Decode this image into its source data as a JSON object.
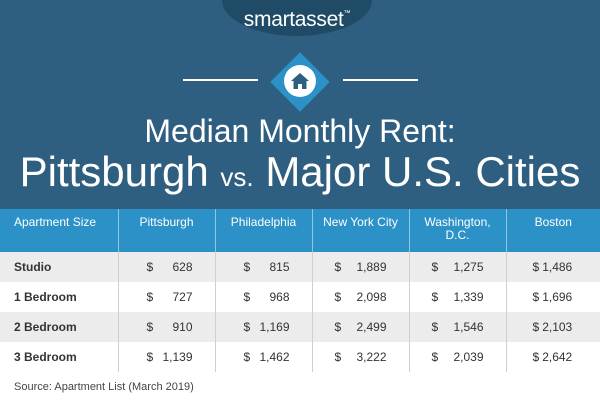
{
  "brand": {
    "name": "smartasset",
    "tm": "™"
  },
  "title": {
    "line1": "Median Monthly Rent:",
    "line2_city": "Pittsburgh",
    "line2_vs": "vs.",
    "line2_rest": "Major U.S. Cities"
  },
  "table": {
    "headers": [
      "Apartment Size",
      "Pittsburgh",
      "Philadelphia",
      "New York City",
      "Washington, D.C.",
      "Boston"
    ],
    "currency": "$",
    "rows": [
      {
        "size": "Studio",
        "values": [
          "628",
          "815",
          "1,889",
          "1,275",
          "1,486"
        ]
      },
      {
        "size": "1 Bedroom",
        "values": [
          "727",
          "968",
          "2,098",
          "1,339",
          "1,696"
        ]
      },
      {
        "size": "2 Bedroom",
        "values": [
          "910",
          "1,169",
          "2,499",
          "1,546",
          "2,103"
        ]
      },
      {
        "size": "3 Bedroom",
        "values": [
          "1,139",
          "1,462",
          "3,222",
          "2,039",
          "2,642"
        ]
      }
    ]
  },
  "source": "Source: Apartment List (March 2019)",
  "colors": {
    "header_bg": "#2f5f80",
    "accent_blue": "#2b91c6",
    "row_alt": "#ececec"
  },
  "icons": {
    "home": "home-icon"
  }
}
